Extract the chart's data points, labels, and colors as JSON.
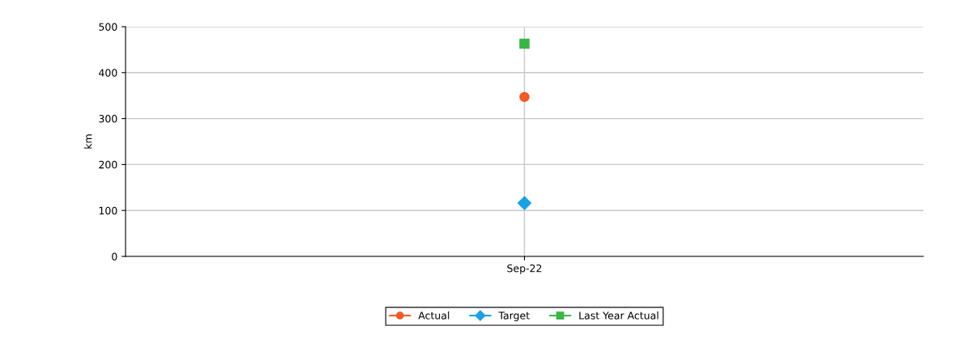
{
  "chart_data": {
    "type": "line",
    "ylabel": "km",
    "categories": [
      "Sep-22"
    ],
    "series": [
      {
        "name": "Actual",
        "color": "#f05a28",
        "values": [
          347
        ],
        "marker": "circle"
      },
      {
        "name": "Target",
        "color": "#1ba1e2",
        "values": [
          116
        ],
        "marker": "diamond"
      },
      {
        "name": "Last Year Actual",
        "color": "#3cb44b",
        "values": [
          463
        ],
        "marker": "square"
      }
    ],
    "ylim": [
      0,
      500
    ],
    "yticks": [
      0,
      100,
      200,
      300,
      400,
      500
    ],
    "grid": true,
    "legend": "bottom"
  }
}
